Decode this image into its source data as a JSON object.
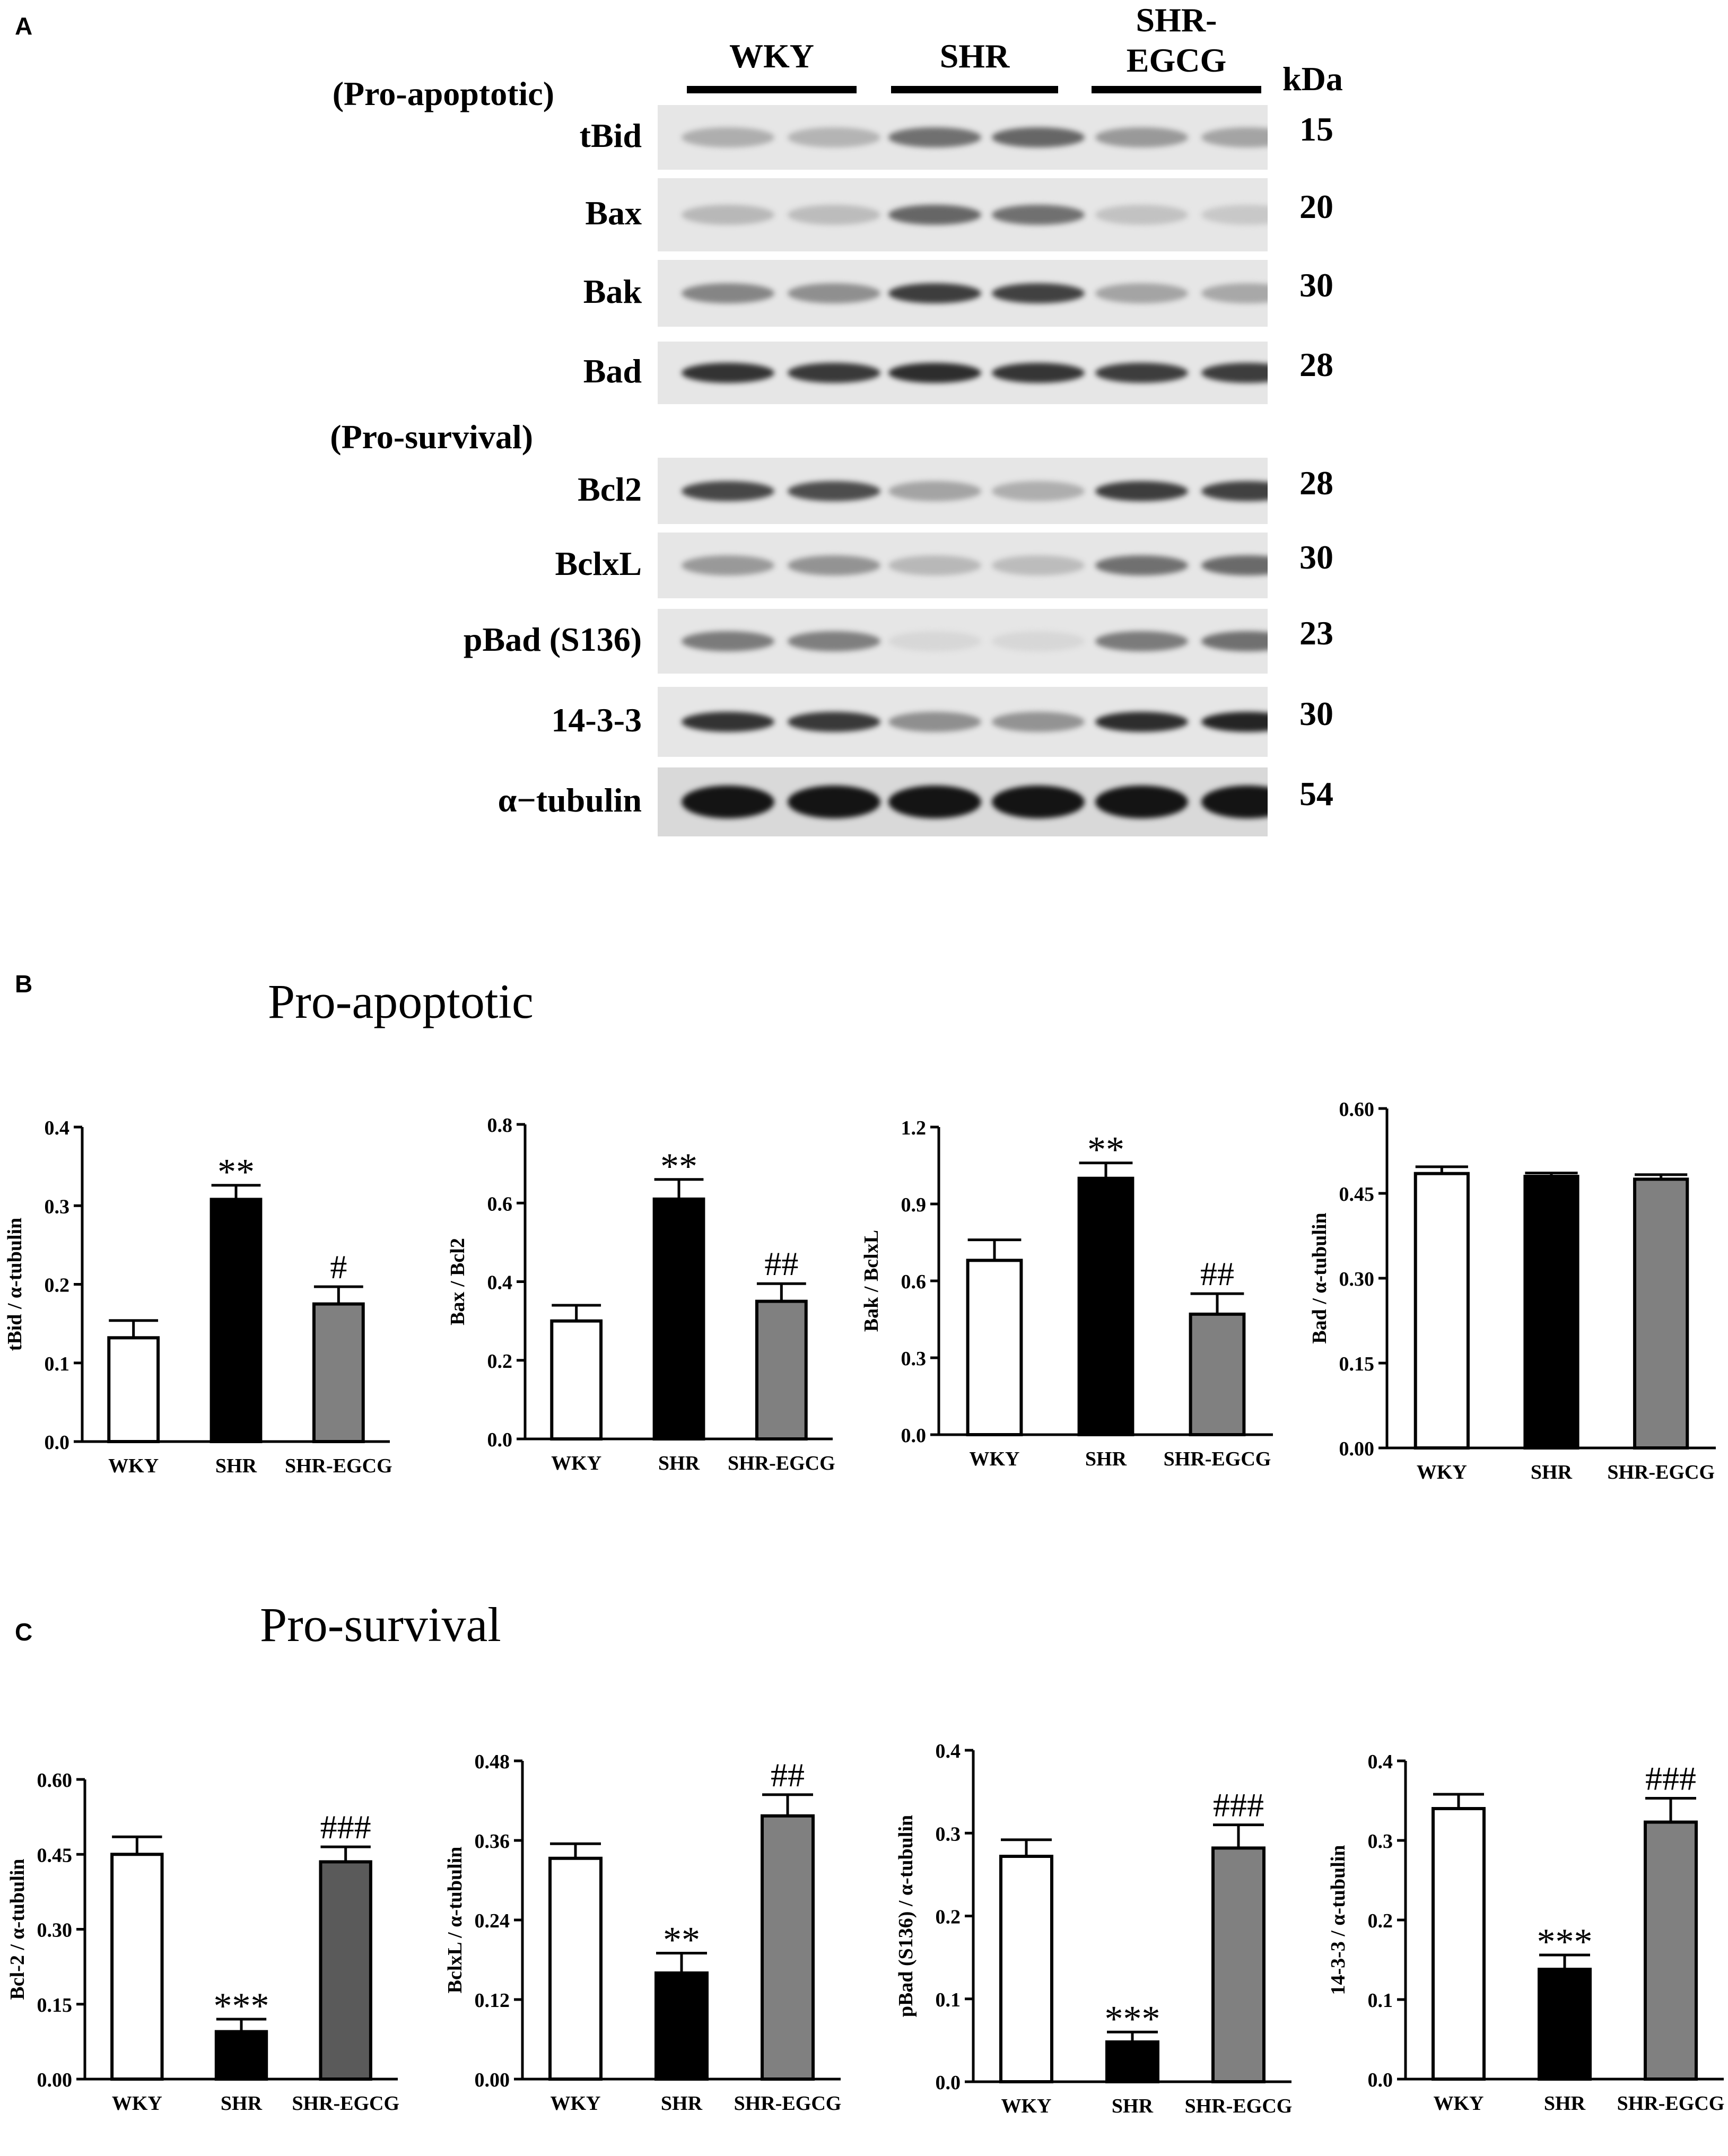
{
  "panels": {
    "a": "A",
    "b": "B",
    "c": "C"
  },
  "blot": {
    "groups": [
      {
        "label": "WKY"
      },
      {
        "label": "SHR"
      },
      {
        "label": "SHR-\nEGCG"
      }
    ],
    "kda_header": "kDa",
    "sections": {
      "pro_apoptotic": "(Pro-apoptotic)",
      "pro_survival": "(Pro-survival)"
    },
    "rows": [
      {
        "label": "tBid",
        "kda": "15",
        "intensity": [
          0.25,
          0.22,
          0.55,
          0.6,
          0.35,
          0.3
        ]
      },
      {
        "label": "Bax",
        "kda": "20",
        "intensity": [
          0.2,
          0.18,
          0.6,
          0.55,
          0.15,
          0.12
        ]
      },
      {
        "label": "Bak",
        "kda": "30",
        "intensity": [
          0.45,
          0.4,
          0.8,
          0.78,
          0.3,
          0.28
        ]
      },
      {
        "label": "Bad",
        "kda": "28",
        "intensity": [
          0.85,
          0.82,
          0.88,
          0.84,
          0.8,
          0.8
        ]
      },
      {
        "label": "Bcl2",
        "kda": "28",
        "intensity": [
          0.75,
          0.72,
          0.3,
          0.25,
          0.8,
          0.78
        ]
      },
      {
        "label": "BclxL",
        "kda": "30",
        "intensity": [
          0.35,
          0.38,
          0.2,
          0.18,
          0.55,
          0.58
        ]
      },
      {
        "label": "pBad (S136)",
        "kda": "23",
        "intensity": [
          0.5,
          0.48,
          0.05,
          0.05,
          0.5,
          0.55
        ]
      },
      {
        "label": "14-3-3",
        "kda": "30",
        "intensity": [
          0.85,
          0.82,
          0.4,
          0.38,
          0.88,
          0.92
        ]
      },
      {
        "label": "α−tubulin",
        "kda": "54",
        "intensity": [
          1,
          1,
          1,
          1,
          1,
          1
        ]
      }
    ]
  },
  "section_titles": {
    "b": "Pro-apoptotic",
    "c": "Pro-survival"
  },
  "colors": {
    "WKY": "#ffffff",
    "SHR": "#000000",
    "SHR-EGCG": "#808080",
    "SHR-EGCG-dark": "#5a5a5a"
  },
  "chart_data": [
    {
      "type": "bar",
      "panel": "B",
      "ylabel": "tBid / α-tubulin",
      "categories": [
        "WKY",
        "SHR",
        "SHR-EGCG"
      ],
      "values": [
        0.132,
        0.308,
        0.175
      ],
      "errors": [
        0.022,
        0.018,
        0.022
      ],
      "ylim": [
        0,
        0.4
      ],
      "ticks": [
        "0.0",
        "0.1",
        "0.2",
        "0.3",
        "0.4"
      ],
      "annotations": [
        "",
        "**",
        "#"
      ]
    },
    {
      "type": "bar",
      "panel": "B",
      "ylabel": "Bax / Bcl2",
      "categories": [
        "WKY",
        "SHR",
        "SHR-EGCG"
      ],
      "values": [
        0.3,
        0.61,
        0.35
      ],
      "errors": [
        0.04,
        0.05,
        0.045
      ],
      "ylim": [
        0,
        0.8
      ],
      "ticks": [
        "0.0",
        "0.2",
        "0.4",
        "0.6",
        "0.8"
      ],
      "annotations": [
        "",
        "**",
        "##"
      ]
    },
    {
      "type": "bar",
      "panel": "B",
      "ylabel": "Bak / BclxL",
      "categories": [
        "WKY",
        "SHR",
        "SHR-EGCG"
      ],
      "values": [
        0.68,
        1.0,
        0.47
      ],
      "errors": [
        0.08,
        0.06,
        0.08
      ],
      "ylim": [
        0,
        1.2
      ],
      "ticks": [
        "0.0",
        "0.3",
        "0.6",
        "0.9",
        "1.2"
      ],
      "annotations": [
        "",
        "**",
        "##"
      ]
    },
    {
      "type": "bar",
      "panel": "B",
      "ylabel": "Bad / α-tubulin",
      "categories": [
        "WKY",
        "SHR",
        "SHR-EGCG"
      ],
      "values": [
        0.485,
        0.48,
        0.475
      ],
      "errors": [
        0.012,
        0.006,
        0.008
      ],
      "ylim": [
        0,
        0.6
      ],
      "ticks": [
        "0.00",
        "0.15",
        "0.30",
        "0.45",
        "0.60"
      ],
      "annotations": [
        "",
        "",
        ""
      ]
    },
    {
      "type": "bar",
      "panel": "C",
      "ylabel": "Bcl-2 / α-tubulin",
      "categories": [
        "WKY",
        "SHR",
        "SHR-EGCG"
      ],
      "values": [
        0.45,
        0.095,
        0.435
      ],
      "errors": [
        0.035,
        0.025,
        0.03
      ],
      "ylim": [
        0,
        0.6
      ],
      "ticks": [
        "0.00",
        "0.15",
        "0.30",
        "0.45",
        "0.60"
      ],
      "annotations": [
        "",
        "***",
        "###"
      ],
      "dark_third": true
    },
    {
      "type": "bar",
      "panel": "C",
      "ylabel": "BclxL / α-tubulin",
      "categories": [
        "WKY",
        "SHR",
        "SHR-EGCG"
      ],
      "values": [
        0.333,
        0.16,
        0.397
      ],
      "errors": [
        0.022,
        0.03,
        0.032
      ],
      "ylim": [
        0,
        0.48
      ],
      "ticks": [
        "0.00",
        "0.12",
        "0.24",
        "0.36",
        "0.48"
      ],
      "annotations": [
        "",
        "**",
        "##"
      ]
    },
    {
      "type": "bar",
      "panel": "C",
      "ylabel": "pBad (S136) / α-tubulin",
      "categories": [
        "WKY",
        "SHR",
        "SHR-EGCG"
      ],
      "values": [
        0.272,
        0.048,
        0.282
      ],
      "errors": [
        0.02,
        0.012,
        0.028
      ],
      "ylim": [
        0,
        0.4
      ],
      "ticks": [
        "0.0",
        "0.1",
        "0.2",
        "0.3",
        "0.4"
      ],
      "annotations": [
        "",
        "***",
        "###"
      ]
    },
    {
      "type": "bar",
      "panel": "C",
      "ylabel": "14-3-3 / α-tubulin",
      "categories": [
        "WKY",
        "SHR",
        "SHR-EGCG"
      ],
      "values": [
        0.34,
        0.138,
        0.323
      ],
      "errors": [
        0.018,
        0.018,
        0.03
      ],
      "ylim": [
        0,
        0.4
      ],
      "ticks": [
        "0.0",
        "0.1",
        "0.2",
        "0.3",
        "0.4"
      ],
      "annotations": [
        "",
        "***",
        "###"
      ]
    }
  ]
}
